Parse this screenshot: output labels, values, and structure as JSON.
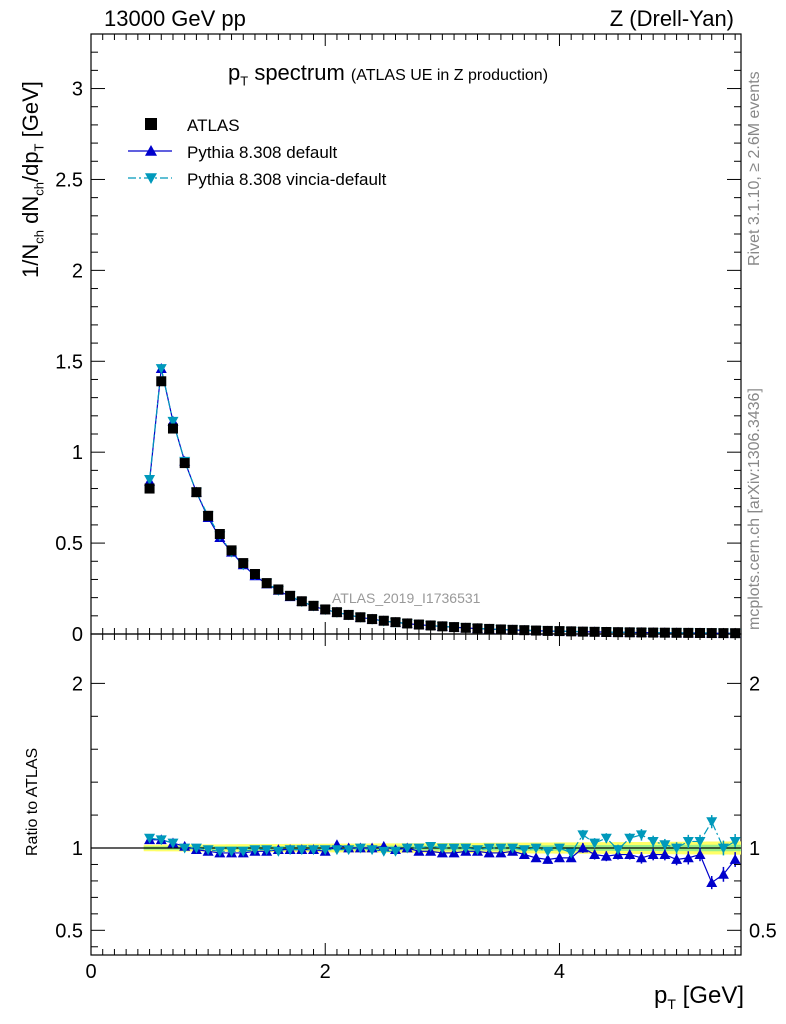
{
  "header": {
    "energy_label": "13000 GeV pp",
    "process_label": "Z (Drell-Yan)"
  },
  "title": {
    "main": "p",
    "main_sub": "T",
    "main_suffix": " spectrum",
    "note": "(ATLAS UE in Z production)"
  },
  "side_labels": {
    "rivet": "Rivet 3.1.10, ≥ 2.6M events",
    "mcplots": "mcplots.cern.ch [arXiv:1306.3436]"
  },
  "analysis_label": "ATLAS_2019_I1736531",
  "legend": [
    {
      "name": "ATLAS",
      "color": "#000000",
      "marker": "square",
      "line": "none"
    },
    {
      "name": "Pythia 8.308 default",
      "color": "#0000cc",
      "marker": "triangle-up",
      "line": "solid"
    },
    {
      "name": "Pythia 8.308 vincia-default",
      "color": "#0099bb",
      "marker": "triangle-down",
      "line": "dashdot"
    }
  ],
  "chart_data": [
    {
      "type": "scatter",
      "panel": "main",
      "ylabel": "1/N_ch dN_ch/dp_T [GeV]",
      "xlim": [
        0,
        5.55
      ],
      "ylim": [
        0,
        3.3
      ],
      "yticks": [
        "0",
        "0.5",
        "1",
        "1.5",
        "2",
        "2.5",
        "3"
      ],
      "x": [
        0.5,
        0.6,
        0.7,
        0.8,
        0.9,
        1.0,
        1.1,
        1.2,
        1.3,
        1.4,
        1.5,
        1.6,
        1.7,
        1.8,
        1.9,
        2.0,
        2.1,
        2.2,
        2.3,
        2.4,
        2.5,
        2.6,
        2.7,
        2.8,
        2.9,
        3.0,
        3.1,
        3.2,
        3.3,
        3.4,
        3.5,
        3.6,
        3.7,
        3.8,
        3.9,
        4.0,
        4.1,
        4.2,
        4.3,
        4.4,
        4.5,
        4.6,
        4.7,
        4.8,
        4.9,
        5.0,
        5.1,
        5.2,
        5.3,
        5.4,
        5.5
      ],
      "series": [
        {
          "name": "ATLAS",
          "values": [
            0.8,
            1.39,
            1.13,
            0.94,
            0.78,
            0.65,
            0.55,
            0.46,
            0.39,
            0.33,
            0.28,
            0.245,
            0.21,
            0.18,
            0.155,
            0.135,
            0.12,
            0.105,
            0.092,
            0.082,
            0.073,
            0.065,
            0.058,
            0.052,
            0.047,
            0.042,
            0.038,
            0.034,
            0.031,
            0.028,
            0.025,
            0.023,
            0.021,
            0.019,
            0.017,
            0.016,
            0.0145,
            0.013,
            0.012,
            0.011,
            0.01,
            0.0092,
            0.0085,
            0.0078,
            0.0072,
            0.0066,
            0.0061,
            0.0056,
            0.0052,
            0.0048,
            0.0045
          ]
        },
        {
          "name": "Pythia 8.308 default",
          "values": [
            0.84,
            1.46,
            1.17,
            0.95,
            0.78,
            0.64,
            0.53,
            0.45,
            0.38,
            0.32,
            0.275,
            0.24,
            0.205,
            0.178,
            0.153,
            0.133,
            0.12,
            0.104,
            0.091,
            0.082,
            0.072,
            0.064,
            0.057,
            0.051,
            0.046,
            0.041,
            0.037,
            0.033,
            0.03,
            0.027,
            0.024,
            0.022,
            0.02,
            0.018,
            0.016,
            0.015,
            0.0136,
            0.0125,
            0.0115,
            0.0104,
            0.0096,
            0.0088,
            0.008,
            0.0074,
            0.0068,
            0.0062,
            0.0058,
            0.0053,
            0.0043,
            0.0041,
            0.0042
          ]
        },
        {
          "name": "Pythia 8.308 vincia-default",
          "values": [
            0.85,
            1.46,
            1.17,
            0.95,
            0.78,
            0.65,
            0.54,
            0.45,
            0.38,
            0.325,
            0.28,
            0.24,
            0.21,
            0.178,
            0.154,
            0.134,
            0.119,
            0.105,
            0.092,
            0.081,
            0.071,
            0.064,
            0.058,
            0.052,
            0.047,
            0.042,
            0.038,
            0.034,
            0.031,
            0.028,
            0.025,
            0.023,
            0.021,
            0.019,
            0.017,
            0.016,
            0.0145,
            0.0132,
            0.0122,
            0.0111,
            0.0102,
            0.0093,
            0.0086,
            0.0079,
            0.0071,
            0.0066,
            0.0061,
            0.0066,
            0.0061,
            0.0049,
            0.0047
          ]
        }
      ]
    },
    {
      "type": "scatter",
      "panel": "ratio",
      "xlabel": "p_T [GeV]",
      "ylabel": "Ratio to ATLAS",
      "xlim": [
        0,
        5.55
      ],
      "ylim": [
        0.35,
        2.3
      ],
      "xticks": [
        "0",
        "2",
        "4"
      ],
      "yticks": [
        "0.5",
        "1",
        "2"
      ],
      "reference_line": 1,
      "band": {
        "name": "ATLAS uncertainty",
        "half_width_low_pt": 0.02,
        "half_width_high_pt": 0.04,
        "colors": [
          "#ffff66",
          "#99ee88"
        ]
      },
      "x": [
        0.5,
        0.6,
        0.7,
        0.8,
        0.9,
        1.0,
        1.1,
        1.2,
        1.3,
        1.4,
        1.5,
        1.6,
        1.7,
        1.8,
        1.9,
        2.0,
        2.1,
        2.2,
        2.3,
        2.4,
        2.5,
        2.6,
        2.7,
        2.8,
        2.9,
        3.0,
        3.1,
        3.2,
        3.3,
        3.4,
        3.5,
        3.6,
        3.7,
        3.8,
        3.9,
        4.0,
        4.1,
        4.2,
        4.3,
        4.4,
        4.5,
        4.6,
        4.7,
        4.8,
        4.9,
        5.0,
        5.1,
        5.2,
        5.3,
        5.4,
        5.5
      ],
      "series": [
        {
          "name": "Pythia 8.308 default",
          "values": [
            1.05,
            1.05,
            1.03,
            1.01,
            0.99,
            0.98,
            0.97,
            0.97,
            0.97,
            0.98,
            0.98,
            0.99,
            0.99,
            0.99,
            0.99,
            0.98,
            1.02,
            1.0,
            1.0,
            1.0,
            1.01,
            0.99,
            1.0,
            0.98,
            0.98,
            0.97,
            0.97,
            0.98,
            0.98,
            0.97,
            0.97,
            0.98,
            0.96,
            0.94,
            0.93,
            0.94,
            0.94,
            1.0,
            0.96,
            0.95,
            0.96,
            0.96,
            0.94,
            0.96,
            0.96,
            0.93,
            0.94,
            0.96,
            0.79,
            0.84,
            0.93
          ],
          "errors": [
            0.01,
            0.01,
            0.01,
            0.01,
            0.01,
            0.01,
            0.01,
            0.01,
            0.01,
            0.01,
            0.01,
            0.01,
            0.01,
            0.01,
            0.01,
            0.01,
            0.01,
            0.01,
            0.01,
            0.01,
            0.01,
            0.01,
            0.01,
            0.015,
            0.015,
            0.015,
            0.015,
            0.02,
            0.02,
            0.02,
            0.02,
            0.02,
            0.02,
            0.025,
            0.025,
            0.025,
            0.025,
            0.03,
            0.03,
            0.03,
            0.03,
            0.03,
            0.035,
            0.035,
            0.035,
            0.035,
            0.04,
            0.04,
            0.04,
            0.045,
            0.045
          ]
        },
        {
          "name": "Pythia 8.308 vincia-default",
          "values": [
            1.06,
            1.05,
            1.03,
            1.0,
            1.0,
            0.99,
            0.98,
            0.98,
            0.98,
            0.99,
            0.99,
            0.98,
            0.99,
            0.99,
            0.99,
            0.99,
            0.99,
            0.99,
            1.0,
            0.99,
            0.98,
            0.98,
            1.0,
            1.0,
            1.01,
            1.0,
            1.0,
            1.0,
            0.99,
            1.0,
            1.0,
            1.0,
            0.99,
            1.0,
            0.98,
            1.0,
            0.97,
            1.08,
            1.03,
            1.06,
            0.99,
            1.06,
            1.08,
            1.04,
            1.02,
            1.0,
            1.04,
            1.04,
            1.16,
            1.0,
            1.04
          ],
          "errors": [
            0.01,
            0.01,
            0.01,
            0.01,
            0.01,
            0.01,
            0.01,
            0.01,
            0.01,
            0.01,
            0.01,
            0.01,
            0.01,
            0.01,
            0.01,
            0.01,
            0.01,
            0.01,
            0.01,
            0.01,
            0.01,
            0.01,
            0.01,
            0.015,
            0.015,
            0.015,
            0.015,
            0.02,
            0.02,
            0.02,
            0.02,
            0.02,
            0.02,
            0.025,
            0.025,
            0.025,
            0.025,
            0.03,
            0.03,
            0.03,
            0.03,
            0.03,
            0.035,
            0.035,
            0.035,
            0.035,
            0.04,
            0.04,
            0.04,
            0.045,
            0.045
          ]
        }
      ]
    }
  ]
}
